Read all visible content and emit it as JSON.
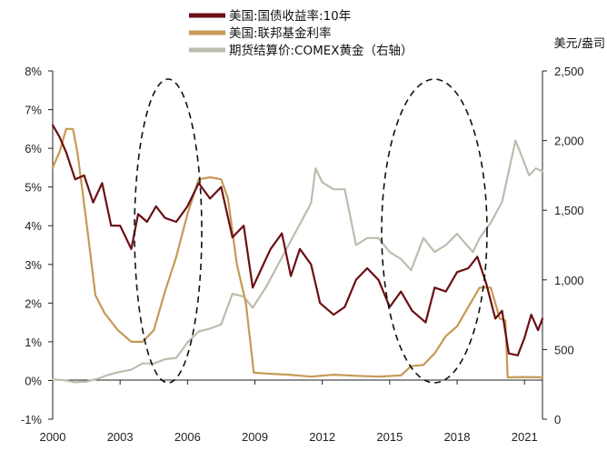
{
  "chart_data": {
    "type": "line",
    "title": "",
    "unit_label_right": "美元/盎司",
    "legend": [
      {
        "name": "美国:国债收益率:10年",
        "color": "#6b0f14",
        "axis": "left"
      },
      {
        "name": "美国:联邦基金利率",
        "color": "#c59a56",
        "axis": "left"
      },
      {
        "name": "期货结算价:COMEX黄金（右轴）",
        "color": "#bdbcad",
        "axis": "right"
      }
    ],
    "x_ticks": [
      "2000",
      "2003",
      "2006",
      "2009",
      "2012",
      "2015",
      "2018",
      "2021"
    ],
    "x_range": [
      2000,
      2021.8
    ],
    "left_axis": {
      "ticks": [
        "8%",
        "7%",
        "6%",
        "5%",
        "4%",
        "3%",
        "2%",
        "1%",
        "0%",
        "-1%"
      ],
      "range": [
        -1,
        8
      ]
    },
    "right_axis": {
      "ticks": [
        "2,500",
        "2,000",
        "1,500",
        "1,000",
        "500",
        "0"
      ],
      "range": [
        0,
        2500
      ]
    },
    "series": [
      {
        "name": "美国:国债收益率:10年",
        "axis": "left",
        "x": [
          2000.0,
          2000.3,
          2000.6,
          2001.0,
          2001.4,
          2001.8,
          2002.2,
          2002.6,
          2003.0,
          2003.5,
          2003.8,
          2004.2,
          2004.6,
          2005.0,
          2005.5,
          2006.0,
          2006.5,
          2007.0,
          2007.5,
          2008.0,
          2008.5,
          2008.9,
          2009.3,
          2009.7,
          2010.2,
          2010.6,
          2011.0,
          2011.5,
          2011.9,
          2012.5,
          2013.0,
          2013.5,
          2014.0,
          2014.5,
          2015.0,
          2015.5,
          2016.0,
          2016.6,
          2017.0,
          2017.5,
          2018.0,
          2018.5,
          2018.9,
          2019.3,
          2019.7,
          2020.0,
          2020.3,
          2020.7,
          2021.0,
          2021.3,
          2021.6,
          2021.8
        ],
        "values": [
          6.6,
          6.3,
          5.9,
          5.2,
          5.3,
          4.6,
          5.1,
          4.0,
          4.0,
          3.4,
          4.3,
          4.1,
          4.5,
          4.2,
          4.1,
          4.5,
          5.1,
          4.7,
          5.0,
          3.7,
          4.0,
          2.4,
          2.9,
          3.4,
          3.8,
          2.7,
          3.4,
          3.0,
          2.0,
          1.7,
          1.9,
          2.6,
          2.9,
          2.6,
          1.9,
          2.3,
          1.8,
          1.5,
          2.4,
          2.3,
          2.8,
          2.9,
          3.2,
          2.5,
          1.6,
          1.8,
          0.7,
          0.65,
          1.1,
          1.7,
          1.3,
          1.6
        ]
      },
      {
        "name": "美国:联邦基金利率",
        "axis": "left",
        "x": [
          2000.0,
          2000.3,
          2000.6,
          2000.9,
          2001.1,
          2001.5,
          2001.9,
          2002.3,
          2002.9,
          2003.5,
          2004.0,
          2004.5,
          2005.0,
          2005.5,
          2006.0,
          2006.5,
          2007.0,
          2007.5,
          2007.8,
          2008.2,
          2008.6,
          2008.95,
          2009.5,
          2010.5,
          2011.5,
          2012.5,
          2013.5,
          2014.5,
          2015.5,
          2015.95,
          2016.5,
          2017.0,
          2017.5,
          2018.0,
          2018.5,
          2019.0,
          2019.5,
          2019.9,
          2020.15,
          2020.25,
          2021.0,
          2021.8
        ],
        "values": [
          5.5,
          5.9,
          6.5,
          6.5,
          5.9,
          4.1,
          2.2,
          1.75,
          1.3,
          1.0,
          1.0,
          1.3,
          2.3,
          3.2,
          4.3,
          5.2,
          5.25,
          5.2,
          4.7,
          3.0,
          2.0,
          0.2,
          0.18,
          0.15,
          0.1,
          0.15,
          0.12,
          0.1,
          0.13,
          0.37,
          0.4,
          0.7,
          1.15,
          1.4,
          1.9,
          2.4,
          2.4,
          1.6,
          1.55,
          0.08,
          0.09,
          0.08
        ]
      },
      {
        "name": "期货结算价:COMEX黄金（右轴）",
        "axis": "right",
        "x": [
          2000.0,
          2000.5,
          2001.0,
          2001.5,
          2002.0,
          2002.5,
          2003.0,
          2003.5,
          2004.0,
          2004.5,
          2005.0,
          2005.5,
          2006.0,
          2006.5,
          2007.0,
          2007.5,
          2008.0,
          2008.5,
          2008.9,
          2009.5,
          2010.0,
          2010.5,
          2011.0,
          2011.5,
          2011.7,
          2012.0,
          2012.5,
          2013.0,
          2013.5,
          2014.0,
          2014.5,
          2015.0,
          2015.5,
          2015.95,
          2016.5,
          2017.0,
          2017.5,
          2018.0,
          2018.7,
          2019.0,
          2019.5,
          2020.0,
          2020.6,
          2020.9,
          2021.2,
          2021.5,
          2021.8
        ],
        "values": [
          285,
          280,
          265,
          270,
          290,
          320,
          340,
          355,
          400,
          400,
          430,
          440,
          550,
          630,
          650,
          680,
          900,
          880,
          800,
          950,
          1100,
          1250,
          1400,
          1550,
          1800,
          1700,
          1650,
          1650,
          1250,
          1300,
          1300,
          1200,
          1150,
          1070,
          1300,
          1200,
          1250,
          1330,
          1200,
          1300,
          1410,
          1560,
          2000,
          1880,
          1750,
          1800,
          1780
        ]
      }
    ],
    "annotations": [
      "dashed ellipse around 2005–2006",
      "dashed ellipse around 2016–2018"
    ]
  }
}
